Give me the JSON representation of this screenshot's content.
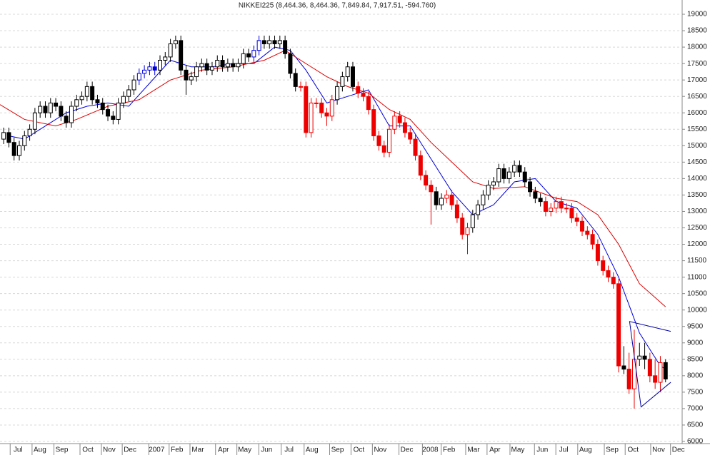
{
  "chart_data": {
    "type": "candlestick",
    "title": "NIKKEI225 (8,464.36, 8,464.36, 7,849.84, 7,917.51, -594.760)",
    "xlim": [
      -0.7,
      129.5
    ],
    "ylim": [
      6000,
      19000
    ],
    "yticks": [
      6000,
      6500,
      7000,
      7500,
      8000,
      8500,
      9000,
      9500,
      10000,
      10500,
      11000,
      11500,
      12000,
      12500,
      13000,
      13500,
      14000,
      14500,
      15000,
      15500,
      16000,
      16500,
      17000,
      17500,
      18000,
      18500,
      19000
    ],
    "xticks": [
      {
        "value": 1.8,
        "label": "Jul"
      },
      {
        "value": 6,
        "label": "Aug"
      },
      {
        "value": 10.2,
        "label": "Sep"
      },
      {
        "value": 15.2,
        "label": "Oct"
      },
      {
        "value": 19.3,
        "label": "Nov"
      },
      {
        "value": 23.3,
        "label": "Dec"
      },
      {
        "value": 28.4,
        "label": "2007"
      },
      {
        "value": 32.3,
        "label": "Feb"
      },
      {
        "value": 36.3,
        "label": "Mar"
      },
      {
        "value": 41.2,
        "label": "Apr"
      },
      {
        "value": 45.3,
        "label": "May"
      },
      {
        "value": 49.5,
        "label": "Jun"
      },
      {
        "value": 53.8,
        "label": "Jul"
      },
      {
        "value": 58.2,
        "label": "Aug"
      },
      {
        "value": 63.1,
        "label": "Sep"
      },
      {
        "value": 67.2,
        "label": "Oct"
      },
      {
        "value": 71.3,
        "label": "Nov"
      },
      {
        "value": 76.4,
        "label": "Dec"
      },
      {
        "value": 80.9,
        "label": "2008"
      },
      {
        "value": 84.5,
        "label": "Feb"
      },
      {
        "value": 89.2,
        "label": "Mar"
      },
      {
        "value": 93.3,
        "label": "Apr"
      },
      {
        "value": 97.7,
        "label": "May"
      },
      {
        "value": 102.4,
        "label": "Jun"
      },
      {
        "value": 106.5,
        "label": "Jul"
      },
      {
        "value": 110.7,
        "label": "Aug"
      },
      {
        "value": 115.8,
        "label": "Sep"
      },
      {
        "value": 119.8,
        "label": "Oct"
      },
      {
        "value": 124.7,
        "label": "Nov"
      },
      {
        "value": 128.5,
        "label": "Dec"
      }
    ],
    "grid": true,
    "open": [
      15200,
      15400,
      15100,
      14700,
      15000,
      15300,
      15500,
      16000,
      16200,
      16000,
      16300,
      16200,
      15900,
      15700,
      16200,
      16400,
      16500,
      16800,
      16400,
      16300,
      16100,
      15900,
      15800,
      16300,
      16500,
      16700,
      17000,
      17200,
      17300,
      17400,
      17300,
      17600,
      17700,
      18100,
      18200,
      17300,
      17000,
      17100,
      17400,
      17500,
      17300,
      17400,
      17600,
      17400,
      17500,
      17400,
      17500,
      17800,
      17700,
      17900,
      18200,
      18100,
      18200,
      18100,
      18200,
      17800,
      17200,
      16800,
      16800,
      15400,
      16300,
      16300,
      16000,
      15900,
      16400,
      16800,
      17100,
      17400,
      16800,
      16600,
      16500,
      16100,
      15300,
      15000,
      14800,
      15500,
      15900,
      15700,
      15400,
      15200,
      14700,
      14100,
      13800,
      13600,
      13200,
      13400,
      13500,
      13200,
      12800,
      12300,
      12500,
      12900,
      13200,
      13500,
      13800,
      13900,
      14300,
      14000,
      14200,
      14400,
      14200,
      13900,
      13600,
      13400,
      13300,
      13000,
      13100,
      13300,
      13100,
      13100,
      12800,
      12700,
      12400,
      12300,
      12000,
      11500,
      11200,
      11000,
      10800,
      8300,
      8200,
      7600,
      8500,
      8600,
      8500,
      8000,
      7800,
      8400
    ],
    "high": [
      15550,
      15550,
      15250,
      15150,
      15450,
      15650,
      16150,
      16350,
      16350,
      16450,
      16450,
      16350,
      16050,
      16350,
      16550,
      16650,
      16950,
      16950,
      16550,
      16450,
      16250,
      16050,
      16450,
      16650,
      16850,
      17150,
      17350,
      17450,
      17550,
      17550,
      17750,
      17850,
      18250,
      18350,
      18350,
      17450,
      17250,
      17550,
      17650,
      17650,
      17550,
      17750,
      17750,
      17650,
      17650,
      17650,
      17950,
      17950,
      18050,
      18350,
      18350,
      18350,
      18350,
      18350,
      18350,
      17950,
      17350,
      16950,
      16950,
      16450,
      16450,
      16450,
      16150,
      16550,
      16950,
      17250,
      17550,
      17550,
      16950,
      16750,
      16650,
      16250,
      15450,
      15150,
      15650,
      16050,
      16050,
      15850,
      15550,
      15350,
      14850,
      14250,
      13950,
      13750,
      13550,
      13650,
      13650,
      13350,
      12950,
      12650,
      13050,
      13350,
      13650,
      13950,
      14050,
      14450,
      14450,
      14350,
      14550,
      14550,
      14350,
      14050,
      13750,
      13550,
      13450,
      13250,
      13450,
      13450,
      13250,
      13250,
      12950,
      12850,
      12550,
      12450,
      12150,
      11650,
      11350,
      11150,
      10950,
      8900,
      8700,
      9400,
      9000,
      9000,
      8700,
      8500,
      8600,
      8500
    ],
    "low": [
      15050,
      14950,
      14550,
      14550,
      14850,
      15150,
      15350,
      15850,
      15850,
      15850,
      16050,
      15750,
      15550,
      15550,
      16050,
      16250,
      16350,
      16250,
      16150,
      15950,
      15750,
      15650,
      15650,
      16150,
      16350,
      16550,
      16850,
      17050,
      17150,
      17150,
      17150,
      17450,
      17550,
      17950,
      17150,
      16550,
      16850,
      16950,
      17250,
      17150,
      17150,
      17250,
      17250,
      17250,
      17250,
      17250,
      17350,
      17550,
      17550,
      17750,
      17950,
      17950,
      17950,
      17950,
      17650,
      17050,
      16650,
      16650,
      15250,
      15250,
      16150,
      15850,
      15600,
      15750,
      16250,
      16650,
      16950,
      16650,
      16450,
      16350,
      15950,
      15150,
      14850,
      14650,
      14650,
      15350,
      15550,
      15250,
      15050,
      14550,
      13950,
      13650,
      12600,
      13050,
      13050,
      13250,
      13050,
      12650,
      12150,
      11700,
      12350,
      12750,
      13050,
      13350,
      13650,
      13750,
      13850,
      13850,
      14050,
      14050,
      13750,
      13450,
      13250,
      13150,
      12850,
      12850,
      12950,
      12950,
      12950,
      12650,
      12550,
      12250,
      12150,
      11850,
      11350,
      11050,
      10850,
      10650,
      8100,
      8050,
      7450,
      7000,
      8300,
      8200,
      7800,
      7600,
      7500,
      7800
    ],
    "close": [
      15400,
      15100,
      14700,
      15000,
      15300,
      15500,
      16000,
      16200,
      16000,
      16300,
      16200,
      15900,
      15700,
      16200,
      16400,
      16500,
      16800,
      16400,
      16300,
      16100,
      15900,
      15800,
      16300,
      16500,
      16700,
      17000,
      17200,
      17300,
      17400,
      17300,
      17600,
      17700,
      18100,
      18200,
      17300,
      17000,
      17100,
      17400,
      17500,
      17300,
      17400,
      17600,
      17400,
      17500,
      17400,
      17500,
      17800,
      17700,
      17900,
      18200,
      18100,
      18200,
      18100,
      18200,
      17800,
      17200,
      16800,
      16800,
      15400,
      16300,
      16300,
      16000,
      15900,
      16400,
      16800,
      17100,
      17400,
      16800,
      16600,
      16500,
      16100,
      15300,
      15000,
      14800,
      15500,
      15900,
      15700,
      15400,
      15200,
      14700,
      14100,
      13800,
      13600,
      13200,
      13400,
      13500,
      13200,
      12800,
      12300,
      12500,
      12900,
      13200,
      13500,
      13800,
      13900,
      14300,
      14000,
      14200,
      14400,
      14200,
      13900,
      13600,
      13400,
      13300,
      13000,
      13100,
      13300,
      13100,
      13100,
      12800,
      12700,
      12400,
      12300,
      12000,
      11500,
      11200,
      11000,
      10800,
      8300,
      8200,
      7600,
      8500,
      8600,
      8500,
      8000,
      7800,
      8400,
      7900
    ],
    "colors": [
      "#000",
      "#000",
      "#000",
      "#000",
      "#000",
      "#000",
      "#000",
      "#000",
      "#000",
      "#000",
      "#000",
      "#000",
      "#000",
      "#000",
      "#000",
      "#000",
      "#000",
      "#000",
      "#000",
      "#000",
      "#000",
      "#000",
      "#000",
      "#000",
      "#000",
      "#000",
      "#00d",
      "#00d",
      "#00d",
      "#00d",
      "#000",
      "#000",
      "#000",
      "#000",
      "#000",
      "#000",
      "#000",
      "#000",
      "#000",
      "#000",
      "#000",
      "#000",
      "#000",
      "#000",
      "#000",
      "#000",
      "#000",
      "#000",
      "#00d",
      "#00d",
      "#000",
      "#000",
      "#000",
      "#000",
      "#000",
      "#000",
      "#000",
      "#e00",
      "#e00",
      "#e00",
      "#e00",
      "#e00",
      "#e00",
      "#e00",
      "#000",
      "#000",
      "#000",
      "#000",
      "#e00",
      "#e00",
      "#e00",
      "#e00",
      "#e00",
      "#e00",
      "#e00",
      "#e00",
      "#e00",
      "#e00",
      "#e00",
      "#e00",
      "#e00",
      "#e00",
      "#e00",
      "#000",
      "#000",
      "#e00",
      "#e00",
      "#e00",
      "#e00",
      "#e00",
      "#000",
      "#000",
      "#000",
      "#000",
      "#000",
      "#000",
      "#000",
      "#000",
      "#000",
      "#000",
      "#000",
      "#000",
      "#000",
      "#000",
      "#e00",
      "#e00",
      "#e00",
      "#e00",
      "#e00",
      "#e00",
      "#e00",
      "#e00",
      "#e00",
      "#e00",
      "#e00",
      "#e00",
      "#e00",
      "#e00",
      "#e00",
      "#000",
      "#e00",
      "#e00",
      "#000",
      "#000",
      "#e00",
      "#e00",
      "#e00",
      "#000"
    ],
    "lines": [
      {
        "color": "#0000dd",
        "x": [
          1,
          4,
          8,
          12,
          16,
          20,
          24,
          28,
          32,
          36,
          40,
          44,
          48,
          52,
          55,
          58,
          62,
          66,
          70,
          74,
          78,
          82,
          86,
          90,
          94,
          98,
          102,
          106,
          110,
          114,
          118,
          122,
          126,
          127
        ],
        "values": [
          15300,
          15200,
          15600,
          16000,
          16200,
          16300,
          16200,
          16900,
          17600,
          17400,
          17400,
          17500,
          17500,
          18000,
          17900,
          17300,
          16300,
          16500,
          16700,
          15600,
          15600,
          14600,
          13600,
          12900,
          13200,
          13900,
          14000,
          13300,
          13100,
          12300,
          11000,
          9300,
          8300,
          8200
        ]
      },
      {
        "color": "#dd0000",
        "x": [
          -0.7,
          4,
          10,
          14,
          20,
          26,
          32,
          38,
          44,
          50,
          54,
          58,
          62,
          66,
          70,
          74,
          78,
          82,
          86,
          90,
          94,
          100,
          106,
          110,
          114,
          118,
          122,
          127
        ],
        "values": [
          16250,
          15800,
          15600,
          15800,
          16200,
          16400,
          17000,
          17300,
          17400,
          17600,
          17900,
          17500,
          17100,
          16800,
          16600,
          16100,
          15800,
          15100,
          14500,
          13900,
          13700,
          13750,
          13400,
          13300,
          12900,
          12000,
          10800,
          10100
        ]
      }
    ],
    "trendlines": [
      {
        "color": "#0000aa",
        "x": [
          128,
          120.1,
          122.3,
          128
        ],
        "values": [
          9350,
          9650,
          7050,
          7800
        ]
      }
    ]
  }
}
